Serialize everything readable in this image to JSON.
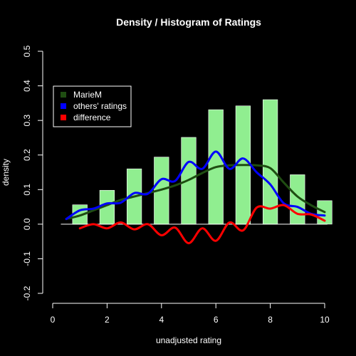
{
  "chart_data": {
    "type": "bar",
    "title": "Density / Histogram of Ratings",
    "xlabel": "unadjusted rating",
    "ylabel": "density",
    "xlim": [
      0,
      10
    ],
    "ylim": [
      -0.2,
      0.5
    ],
    "x_ticks": [
      0,
      2,
      4,
      6,
      8,
      10
    ],
    "y_ticks": [
      -0.2,
      -0.1,
      0.0,
      0.1,
      0.2,
      0.3,
      0.4,
      0.5
    ],
    "x_tick_labels": [
      "0",
      "2",
      "4",
      "6",
      "8",
      "10"
    ],
    "y_tick_labels": [
      "-0.2",
      "-0.1",
      "0.0",
      "0.1",
      "0.2",
      "0.3",
      "0.4",
      "0.5"
    ],
    "grid": false,
    "legend_position": "top-left",
    "bars": {
      "color": "#90ee90",
      "x": [
        1,
        2,
        3,
        4,
        5,
        6,
        7,
        8,
        9,
        10
      ],
      "values": [
        0.056,
        0.098,
        0.16,
        0.194,
        0.251,
        0.331,
        0.342,
        0.36,
        0.143,
        0.068
      ]
    },
    "series": [
      {
        "name": "MarieM",
        "color": "#1f4d12",
        "x": [
          0.5,
          1,
          1.5,
          2,
          2.5,
          3,
          3.5,
          4,
          4.5,
          5,
          5.5,
          6,
          6.5,
          7,
          7.5,
          8,
          8.5,
          9,
          9.5,
          10
        ],
        "y": [
          0.015,
          0.025,
          0.04,
          0.055,
          0.07,
          0.08,
          0.09,
          0.1,
          0.112,
          0.128,
          0.148,
          0.165,
          0.17,
          0.171,
          0.17,
          0.162,
          0.12,
          0.08,
          0.055,
          0.035
        ]
      },
      {
        "name": "others' ratings",
        "color": "#0000ff",
        "x": [
          0.5,
          1,
          1.5,
          2,
          2.5,
          3,
          3.5,
          4,
          4.5,
          5,
          5.5,
          6,
          6.5,
          7,
          7.5,
          8,
          8.5,
          9,
          9.5,
          10
        ],
        "y": [
          0.015,
          0.04,
          0.045,
          0.06,
          0.062,
          0.09,
          0.088,
          0.13,
          0.125,
          0.18,
          0.16,
          0.21,
          0.16,
          0.19,
          0.15,
          0.115,
          0.06,
          0.05,
          0.03,
          0.025
        ]
      },
      {
        "name": "difference",
        "color": "#ff0000",
        "x": [
          1,
          1.5,
          2,
          2.5,
          3,
          3.5,
          4,
          4.5,
          5,
          5.5,
          6,
          6.5,
          7,
          7.5,
          8,
          8.5,
          9,
          9.5,
          10
        ],
        "y": [
          -0.012,
          0.0,
          -0.012,
          0.005,
          -0.015,
          0.0,
          -0.032,
          -0.01,
          -0.055,
          -0.012,
          -0.048,
          0.005,
          -0.018,
          0.048,
          0.045,
          0.055,
          0.03,
          0.028,
          0.01
        ]
      }
    ]
  }
}
